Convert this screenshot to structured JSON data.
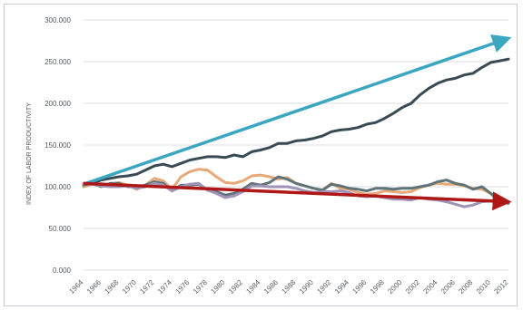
{
  "chart_data": {
    "type": "line",
    "title": "",
    "xlabel": "",
    "ylabel": "INDEX OF LABOR PRODUCTIVITY",
    "ylim": [
      0,
      300
    ],
    "y_ticks": [
      "0.000",
      "50.000",
      "100.000",
      "150.000",
      "200.000",
      "250.000",
      "300.000"
    ],
    "y_tick_values": [
      0,
      50,
      100,
      150,
      200,
      250,
      300
    ],
    "x_ticks": [
      "1964",
      "1966",
      "1968",
      "1970",
      "1972",
      "1974",
      "1976",
      "1978",
      "1980",
      "1982",
      "1984",
      "1986",
      "1988",
      "1990",
      "1992",
      "1994",
      "1996",
      "1998",
      "2000",
      "2002",
      "2004",
      "2006",
      "2008",
      "2010",
      "2012"
    ],
    "grid": "horizontal",
    "legend": "none",
    "x": [
      1964,
      1965,
      1966,
      1967,
      1968,
      1969,
      1970,
      1971,
      1972,
      1973,
      1974,
      1975,
      1976,
      1977,
      1978,
      1979,
      1980,
      1981,
      1982,
      1983,
      1984,
      1985,
      1986,
      1987,
      1988,
      1989,
      1990,
      1991,
      1992,
      1993,
      1994,
      1995,
      1996,
      1997,
      1998,
      1999,
      2000,
      2001,
      2002,
      2003,
      2004,
      2005,
      2006,
      2007,
      2008,
      2009,
      2010,
      2011,
      2012
    ],
    "series": [
      {
        "color": "#3a4a55",
        "values": [
          100,
          104,
          108,
          110,
          112,
          113,
          115,
          120,
          125,
          127,
          124,
          128,
          132,
          134,
          136,
          136,
          135,
          138,
          136,
          142,
          144,
          147,
          152,
          152,
          155,
          156,
          158,
          161,
          166,
          168,
          169,
          171,
          175,
          177,
          182,
          188,
          195,
          200,
          210,
          218,
          224,
          228,
          230,
          234,
          236,
          243,
          249,
          251,
          253
        ]
      },
      {
        "color": "#e8a878",
        "values": [
          100,
          103,
          101,
          103,
          105,
          102,
          97,
          102,
          110,
          107,
          97,
          112,
          118,
          121,
          120,
          112,
          105,
          104,
          107,
          113,
          114,
          112,
          109,
          111,
          104,
          101,
          98,
          96,
          104,
          98,
          97,
          93,
          91,
          92,
          95,
          94,
          93,
          94,
          99,
          102,
          104,
          103,
          103,
          101,
          98,
          97,
          92,
          85,
          82
        ]
      },
      {
        "color": "#5f7478",
        "values": [
          102,
          104,
          100,
          104,
          104,
          100,
          100,
          102,
          106,
          104,
          95,
          102,
          102,
          103,
          96,
          94,
          90,
          92,
          97,
          104,
          102,
          105,
          112,
          109,
          104,
          101,
          98,
          96,
          103,
          101,
          98,
          97,
          95,
          98,
          98,
          97,
          98,
          98,
          100,
          102,
          106,
          108,
          104,
          102,
          97,
          100,
          92,
          82,
          80
        ]
      },
      {
        "color": "#9f93b8",
        "values": [
          104,
          103,
          101,
          100,
          100,
          101,
          98,
          100,
          104,
          102,
          95,
          100,
          103,
          104,
          96,
          92,
          87,
          89,
          94,
          101,
          101,
          100,
          100,
          100,
          98,
          95,
          93,
          94,
          94,
          95,
          93,
          89,
          88,
          89,
          87,
          85,
          85,
          84,
          87,
          85,
          84,
          82,
          79,
          76,
          78,
          82,
          83,
          80,
          82
        ]
      }
    ],
    "annotations": [
      {
        "type": "arrow",
        "color": "#3aa6c0",
        "from": [
          1964,
          103
        ],
        "to": [
          2012,
          278
        ]
      },
      {
        "type": "arrow",
        "color": "#b01818",
        "from": [
          1964,
          104
        ],
        "to": [
          2012,
          82
        ]
      }
    ]
  }
}
